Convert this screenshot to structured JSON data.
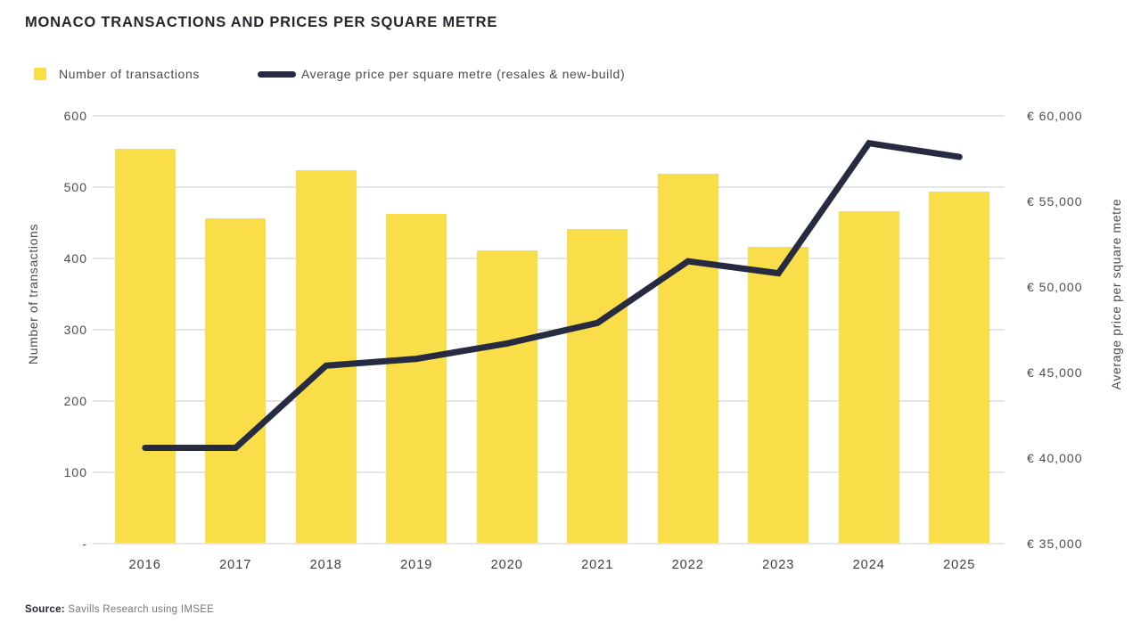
{
  "title": "MONACO TRANSACTIONS AND PRICES PER SQUARE METRE",
  "legend": {
    "bar_label": "Number of transactions",
    "line_label": "Average price per square metre (resales & new-build)"
  },
  "source": {
    "label": "Source:",
    "text": "Savills Research using IMSEE"
  },
  "colors": {
    "bar_yellow": "#F9DD49",
    "line_navy": "#262B41",
    "gridline": "#e5e5e5",
    "title_text": "#26262e",
    "axis_text": "#4d4d4d"
  },
  "chart_data": {
    "type": "bar",
    "title": "MONACO TRANSACTIONS AND PRICES PER SQUARE METRE",
    "categories": [
      "2016",
      "2017",
      "2018",
      "2019",
      "2020",
      "2021",
      "2022",
      "2023",
      "2024",
      "2025"
    ],
    "series": [
      {
        "name": "Number of transactions",
        "type": "bar",
        "axis": "left",
        "color": "#F9DD49",
        "values": [
          553,
          455,
          522,
          461,
          410,
          440,
          518,
          415,
          465,
          492
        ]
      },
      {
        "name": "Average price per square metre (resales & new-build)",
        "type": "line",
        "axis": "right",
        "color": "#262B41",
        "values": [
          40600,
          40600,
          45400,
          45800,
          46700,
          47900,
          51500,
          50800,
          58400,
          57600
        ]
      }
    ],
    "left_axis": {
      "label": "Number of transactions",
      "min": 0,
      "max": 600,
      "tick_labels": [
        "600",
        "500",
        "400",
        "300",
        "200",
        "100",
        "-"
      ]
    },
    "right_axis": {
      "label": "Average price per square metre",
      "min": 35000,
      "max": 60000,
      "tick_labels": [
        "€ 60,000",
        "€ 55,000",
        "€ 50,000",
        "€ 45,000",
        "€ 40,000",
        "€ 35,000"
      ]
    },
    "grid": true,
    "legend_position": "top-left"
  }
}
